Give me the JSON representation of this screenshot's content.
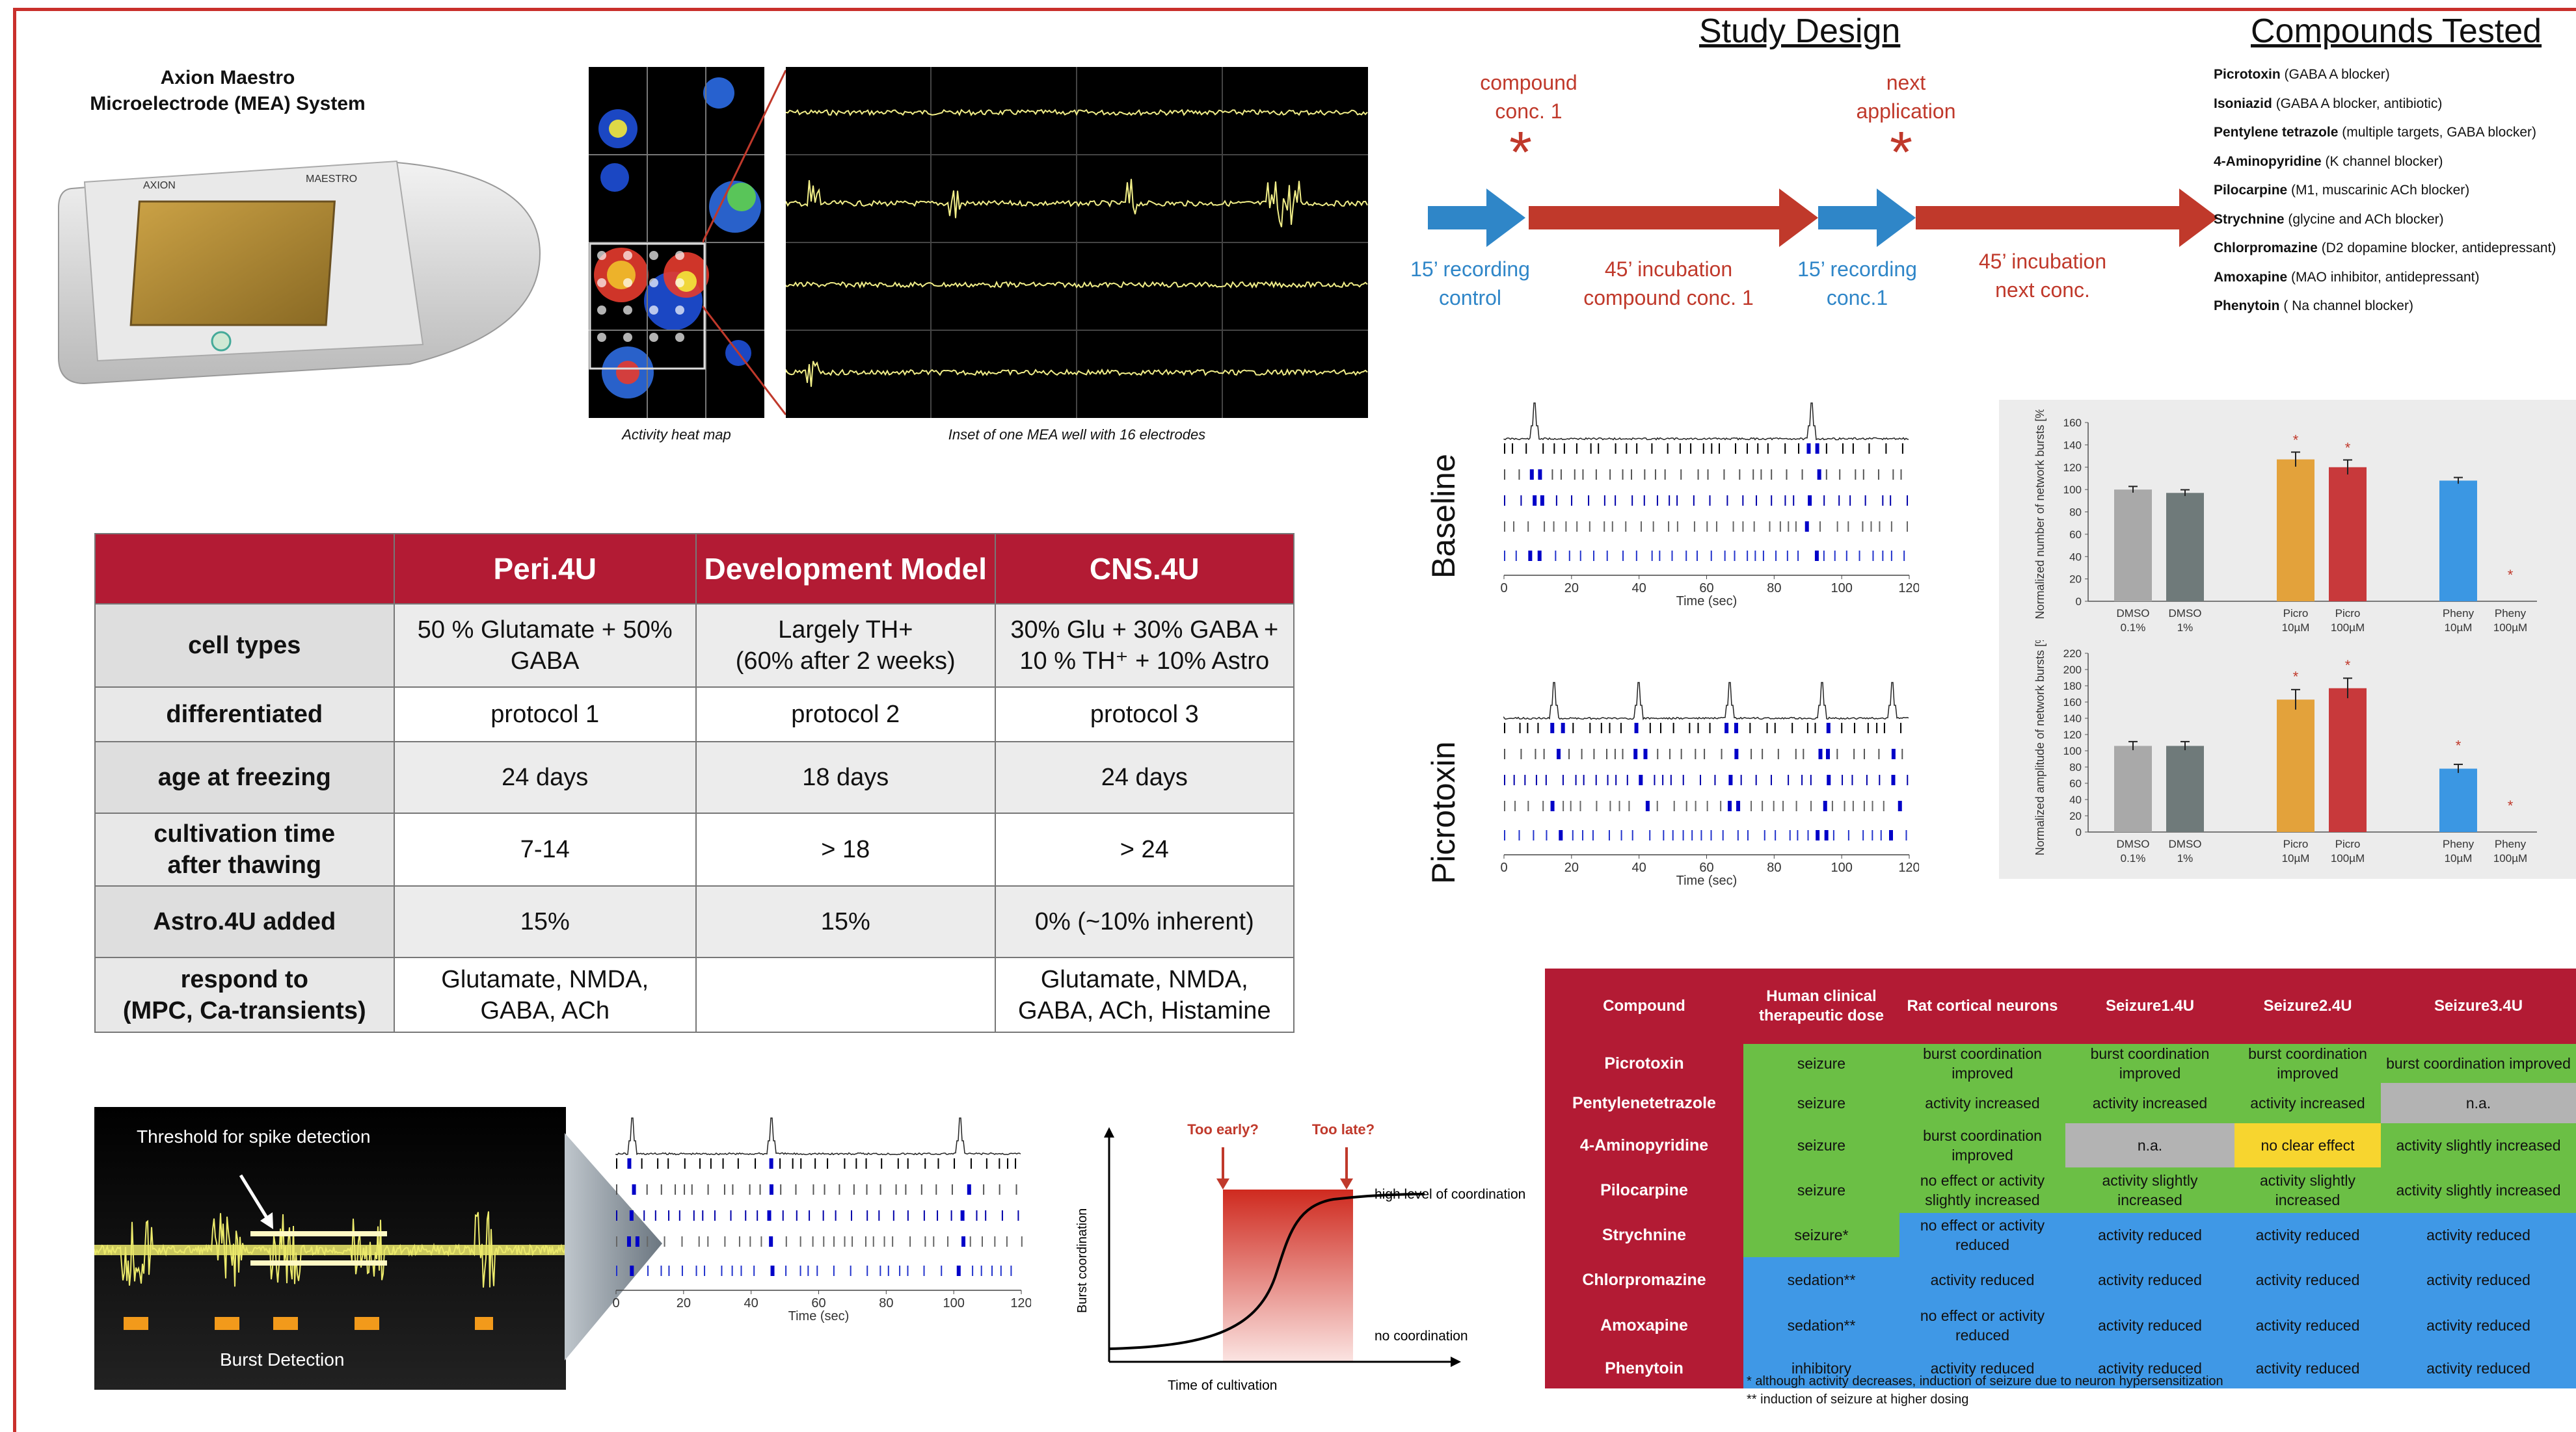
{
  "system": {
    "title_line1": "Axion Maestro",
    "title_line2": "Microelectrode (MEA) System",
    "brand": "AXION",
    "model": "MAESTRO"
  },
  "heatmap": {
    "caption": "Activity heat map"
  },
  "inset": {
    "caption": "Inset of one MEA well with 16 electrodes"
  },
  "study_design": {
    "title": "Study Design",
    "steps_top": [
      {
        "line1": "compound",
        "line2": "conc. 1"
      },
      {
        "line1": "next",
        "line2": "application"
      }
    ],
    "steps_bottom": [
      {
        "line1": "15’ recording",
        "line2": "control",
        "color": "#2f86c8"
      },
      {
        "line1": "45’ incubation",
        "line2": "compound conc. 1",
        "color": "#c0392b"
      },
      {
        "line1": "15’ recording",
        "line2": "conc.1",
        "color": "#2f86c8"
      },
      {
        "line1": "45’ incubation",
        "line2": "next conc.",
        "color": "#c0392b"
      }
    ],
    "marker": "*"
  },
  "compounds_tested": {
    "title": "Compounds Tested",
    "items": [
      {
        "name": "Picrotoxin",
        "desc": " (GABA A blocker)"
      },
      {
        "name": "Isoniazid",
        "desc": " (GABA A blocker, antibiotic)"
      },
      {
        "name": "Pentylene tetrazole",
        "desc": " (multiple targets, GABA blocker)"
      },
      {
        "name": "4-Aminopyridine",
        "desc": " (K channel blocker)"
      },
      {
        "name": "Pilocarpine",
        "desc": " (M1, muscarinic ACh blocker)"
      },
      {
        "name": "Strychnine",
        "desc": " (glycine and ACh blocker)"
      },
      {
        "name": "Chlorpromazine",
        "desc": " (D2 dopamine blocker, antidepressant)"
      },
      {
        "name": "Amoxapine",
        "desc": " (MAO inhibitor, antidepressant)"
      },
      {
        "name": "Phenytoin",
        "desc": " ( Na channel blocker)"
      }
    ]
  },
  "cell_table": {
    "headers": [
      "",
      "Peri.4U",
      "Development Model",
      "CNS.4U"
    ],
    "rows": [
      {
        "label": "cell types",
        "c1a": "50 % Glutamate + 50%",
        "c1b": "GABA",
        "c2a": "Largely TH+",
        "c2b": "(60% after 2 weeks)",
        "c3a": "30% Glu + 30% GABA +",
        "c3b": "10 % TH⁺ + 10% Astro"
      },
      {
        "label": "differentiated",
        "c1": "protocol 1",
        "c2": "protocol 2",
        "c3": "protocol 3"
      },
      {
        "label": "age at freezing",
        "c1": "24 days",
        "c2": "18 days",
        "c3": "24 days"
      },
      {
        "label_a": "cultivation time",
        "label_b": "after thawing",
        "c1": "7-14",
        "c2": "> 18",
        "c3": "> 24"
      },
      {
        "label": "Astro.4U added",
        "c1": "15%",
        "c2": "15%",
        "c3": "0% (~10% inherent)"
      },
      {
        "label_a": "respond to",
        "label_b": "(MPC, Ca-transients)",
        "c1a": "Glutamate, NMDA,",
        "c1b": "GABA, ACh",
        "c2": "",
        "c3a": "Glutamate, NMDA,",
        "c3b": "GABA, ACh, Histamine"
      }
    ]
  },
  "raster_baseline": {
    "label": "Baseline",
    "xlabel": "Time (sec)",
    "ticks": [
      "0",
      "20",
      "40",
      "60",
      "80",
      "100",
      "120"
    ]
  },
  "raster_picro": {
    "label": "Picrotoxin",
    "xlabel": "Time (sec)",
    "ticks": [
      "0",
      "20",
      "40",
      "60",
      "80",
      "100",
      "120"
    ]
  },
  "chart_data": [
    {
      "type": "bar",
      "ylabel": "Normalized number of network bursts [%]",
      "ylim": [
        0,
        160
      ],
      "yticks": [
        "0",
        "20",
        "40",
        "60",
        "80",
        "100",
        "120",
        "140",
        "160"
      ],
      "categories": [
        "DMSO 0.1%",
        "DMSO 1%",
        "Picro 10µM",
        "Picro 100µM",
        "Pheny 10µM",
        "Pheny 100µM"
      ],
      "values": [
        100,
        97,
        127,
        120,
        108,
        0
      ],
      "significant": [
        false,
        false,
        true,
        true,
        false,
        true
      ],
      "colors": [
        "#a9a9a9",
        "#6f7a7a",
        "#e3a23b",
        "#c8393b",
        "#3b97e3",
        "#3b97e3"
      ]
    },
    {
      "type": "bar",
      "ylabel": "Normalized amplitude of network bursts [%]",
      "ylim": [
        0,
        220
      ],
      "yticks": [
        "0",
        "20",
        "40",
        "60",
        "80",
        "100",
        "120",
        "140",
        "160",
        "180",
        "200",
        "220"
      ],
      "categories": [
        "DMSO 0.1%",
        "DMSO 1%",
        "Picro 10µM",
        "Picro 100µM",
        "Pheny 10µM",
        "Pheny 100µM"
      ],
      "values": [
        106,
        106,
        163,
        177,
        78,
        0
      ],
      "significant": [
        false,
        false,
        true,
        true,
        true,
        true
      ],
      "colors": [
        "#a9a9a9",
        "#6f7a7a",
        "#e3a23b",
        "#c8393b",
        "#3b97e3",
        "#3b97e3"
      ]
    }
  ],
  "spike": {
    "threshold_label": "Threshold for spike detection",
    "burst_label": "Burst Detection"
  },
  "raster_small": {
    "xlabel": "Time (sec)",
    "ticks": [
      "0",
      "20",
      "40",
      "60",
      "80",
      "100",
      "120"
    ]
  },
  "coordination": {
    "too_early": "Too early?",
    "too_late": "Too late?",
    "high": "high level of coordination",
    "low": "no coordination",
    "ylabel": "Burst coordination",
    "xlabel": "Time of cultivation"
  },
  "compound_table": {
    "headers": [
      "Compound",
      "Human clinical therapeutic dose",
      "Rat cortical neurons",
      "Seizure1.4U",
      "Seizure2.4U",
      "Seizure3.4U"
    ],
    "rows": [
      {
        "name": "Picrotoxin",
        "cells": [
          [
            "seizure",
            "g"
          ],
          [
            "burst coordination improved",
            "g"
          ],
          [
            "burst coordination improved",
            "g"
          ],
          [
            "burst coordination improved",
            "g"
          ],
          [
            "burst coordination improved",
            "g"
          ]
        ]
      },
      {
        "name": "Pentylenetetrazole",
        "cells": [
          [
            "seizure",
            "g"
          ],
          [
            "activity increased",
            "g"
          ],
          [
            "activity increased",
            "g"
          ],
          [
            "activity increased",
            "g"
          ],
          [
            "n.a.",
            "gr"
          ]
        ]
      },
      {
        "name": "4-Aminopyridine",
        "cells": [
          [
            "seizure",
            "g"
          ],
          [
            "burst coordination improved",
            "g"
          ],
          [
            "n.a.",
            "gr"
          ],
          [
            "no clear effect",
            "y"
          ],
          [
            "activity slightly increased",
            "g"
          ]
        ]
      },
      {
        "name": "Pilocarpine",
        "cells": [
          [
            "seizure",
            "g"
          ],
          [
            "no effect or activity slightly increased",
            "g"
          ],
          [
            "activity slightly increased",
            "g"
          ],
          [
            "activity slightly increased",
            "g"
          ],
          [
            "activity slightly increased",
            "g"
          ]
        ]
      },
      {
        "name": "Strychnine",
        "cells": [
          [
            "seizure*",
            "g"
          ],
          [
            "no effect or activity reduced",
            "b"
          ],
          [
            "activity reduced",
            "b"
          ],
          [
            "activity reduced",
            "b"
          ],
          [
            "activity reduced",
            "b"
          ]
        ]
      },
      {
        "name": "Chlorpromazine",
        "cells": [
          [
            "sedation**",
            "b"
          ],
          [
            "activity reduced",
            "b"
          ],
          [
            "activity reduced",
            "b"
          ],
          [
            "activity reduced",
            "b"
          ],
          [
            "activity reduced",
            "b"
          ]
        ]
      },
      {
        "name": "Amoxapine",
        "cells": [
          [
            "sedation**",
            "b"
          ],
          [
            "no effect or activity reduced",
            "b"
          ],
          [
            "activity reduced",
            "b"
          ],
          [
            "activity reduced",
            "b"
          ],
          [
            "activity reduced",
            "b"
          ]
        ]
      },
      {
        "name": "Phenytoin",
        "cells": [
          [
            "inhibitory",
            "b"
          ],
          [
            "activity reduced",
            "b"
          ],
          [
            "activity reduced",
            "b"
          ],
          [
            "activity reduced",
            "b"
          ],
          [
            "activity reduced",
            "b"
          ]
        ]
      }
    ],
    "footnote1": "* although activity decreases, induction of seizure due to neuron hypersensitization",
    "footnote2": "** induction of seizure at higher dosing"
  }
}
